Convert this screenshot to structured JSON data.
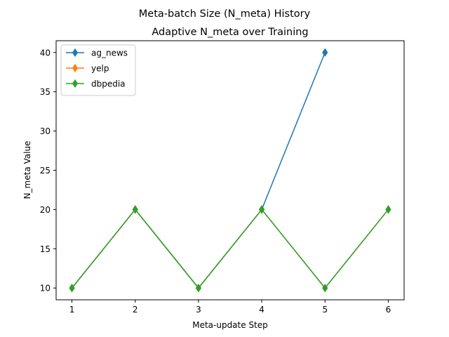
{
  "figure": {
    "suptitle": "Meta-batch Size (N_meta) History"
  },
  "chart_data": {
    "type": "line",
    "title": "Adaptive N_meta over Training",
    "xlabel": "Meta-update Step",
    "ylabel": "N_meta Value",
    "xlim": [
      0.75,
      6.25
    ],
    "ylim": [
      8.5,
      41.5
    ],
    "xticks": [
      1,
      2,
      3,
      4,
      5,
      6
    ],
    "yticks": [
      10,
      15,
      20,
      25,
      30,
      35,
      40
    ],
    "grid": false,
    "legend": "top-left",
    "marker": "thin-diamond",
    "series": [
      {
        "name": "ag_news",
        "color": "#1f77b4",
        "x": [
          1,
          2,
          3,
          4,
          5
        ],
        "y": [
          10,
          20,
          10,
          20,
          40
        ]
      },
      {
        "name": "yelp",
        "color": "#ff7f0e",
        "x": [
          1,
          2,
          3,
          4,
          5,
          6
        ],
        "y": [
          10,
          20,
          10,
          20,
          10,
          20
        ]
      },
      {
        "name": "dbpedia",
        "color": "#2ca02c",
        "x": [
          1,
          2,
          3,
          4,
          5,
          6
        ],
        "y": [
          10,
          20,
          10,
          20,
          10,
          20
        ]
      }
    ]
  }
}
